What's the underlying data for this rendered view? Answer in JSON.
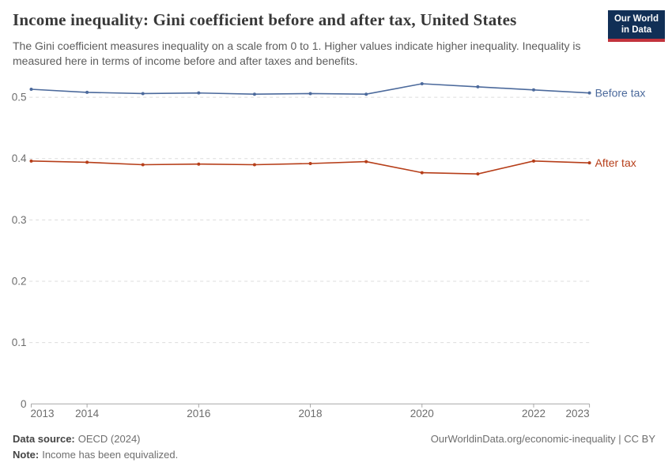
{
  "logo": {
    "line1": "Our World",
    "line2": "in Data",
    "bg_color": "#112f56",
    "accent_color": "#c2333c"
  },
  "chart_data": {
    "type": "line",
    "title": "Income inequality: Gini coefficient before and after tax, United States",
    "subtitle": "The Gini coefficient measures inequality on a scale from 0 to 1. Higher values indicate higher inequality. Inequality is measured here in terms of income before and after taxes and benefits.",
    "x": [
      2013,
      2014,
      2015,
      2016,
      2017,
      2018,
      2019,
      2020,
      2021,
      2022,
      2023
    ],
    "series": [
      {
        "name": "Before tax",
        "color": "#4C6A9C",
        "values": [
          0.513,
          0.508,
          0.506,
          0.507,
          0.505,
          0.506,
          0.505,
          0.522,
          0.517,
          0.512,
          0.507
        ]
      },
      {
        "name": "After tax",
        "color": "#B63E19",
        "values": [
          0.396,
          0.394,
          0.39,
          0.391,
          0.39,
          0.392,
          0.395,
          0.377,
          0.375,
          0.396,
          0.393
        ]
      }
    ],
    "xlabel": "",
    "ylabel": "",
    "ylim": [
      0,
      0.53
    ],
    "yticks": [
      0,
      0.1,
      0.2,
      0.3,
      0.4,
      0.5
    ],
    "xticks": [
      2013,
      2014,
      2016,
      2018,
      2020,
      2022,
      2023
    ],
    "grid": "horizontal dashed gridlines",
    "legend": "labels at right end of each line",
    "axis_color": "#a7a7a7",
    "grid_color": "#dcdcdc",
    "tick_label_color": "#6d6d6d"
  },
  "footer": {
    "source_label": "Data source:",
    "source_value": "OECD (2024)",
    "note_label": "Note:",
    "note_value": "Income has been equivalized.",
    "right_text": "OurWorldinData.org/economic-inequality | CC BY"
  }
}
